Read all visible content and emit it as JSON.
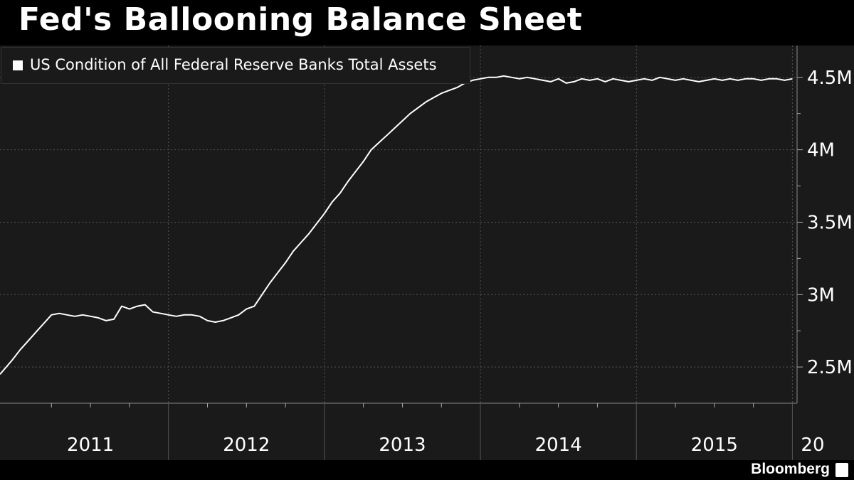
{
  "title": "Fed's Ballooning Balance Sheet",
  "brand": "Bloomberg",
  "colors": {
    "background": "#000000",
    "plot_bg": "#1a1a1a",
    "line": "#ffffff",
    "grid": "#555555",
    "text": "#ffffff"
  },
  "chart_data": {
    "type": "line",
    "title": "Fed's Ballooning Balance Sheet",
    "legend": {
      "placement": "top-left"
    },
    "grid": true,
    "y_axis": {
      "position": "right",
      "range": [
        2.25,
        4.72
      ],
      "ticks": [
        2.5,
        3,
        3.5,
        4,
        4.5
      ],
      "tick_labels": [
        "2.5M",
        "3M",
        "3.5M",
        "4M",
        "4.5M"
      ]
    },
    "x_axis": {
      "range": [
        2010.92,
        2016.03
      ],
      "year_labels": [
        "2011",
        "2012",
        "2013",
        "2014",
        "2015",
        "20"
      ]
    },
    "series": [
      {
        "name": "US Condition of All Federal Reserve Banks Total Assets",
        "x": [
          2010.92,
          2010.96,
          2011.0,
          2011.05,
          2011.1,
          2011.15,
          2011.2,
          2011.25,
          2011.3,
          2011.35,
          2011.4,
          2011.45,
          2011.5,
          2011.55,
          2011.6,
          2011.65,
          2011.7,
          2011.75,
          2011.8,
          2011.85,
          2011.9,
          2011.95,
          2012.0,
          2012.05,
          2012.1,
          2012.15,
          2012.2,
          2012.25,
          2012.3,
          2012.35,
          2012.4,
          2012.45,
          2012.5,
          2012.55,
          2012.6,
          2012.65,
          2012.7,
          2012.75,
          2012.8,
          2012.85,
          2012.9,
          2012.95,
          2013.0,
          2013.05,
          2013.1,
          2013.15,
          2013.2,
          2013.25,
          2013.3,
          2013.35,
          2013.4,
          2013.45,
          2013.5,
          2013.55,
          2013.6,
          2013.65,
          2013.7,
          2013.75,
          2013.8,
          2013.85,
          2013.9,
          2013.95,
          2014.0,
          2014.05,
          2014.1,
          2014.15,
          2014.2,
          2014.25,
          2014.3,
          2014.35,
          2014.4,
          2014.45,
          2014.5,
          2014.55,
          2014.6,
          2014.65,
          2014.7,
          2014.75,
          2014.8,
          2014.85,
          2014.9,
          2014.95,
          2015.0,
          2015.05,
          2015.1,
          2015.15,
          2015.2,
          2015.25,
          2015.3,
          2015.35,
          2015.4,
          2015.45,
          2015.5,
          2015.55,
          2015.6,
          2015.65,
          2015.7,
          2015.75,
          2015.8,
          2015.85,
          2015.9,
          2015.95,
          2016.0
        ],
        "y": [
          2.45,
          2.5,
          2.55,
          2.62,
          2.68,
          2.74,
          2.8,
          2.86,
          2.87,
          2.86,
          2.85,
          2.86,
          2.85,
          2.84,
          2.82,
          2.83,
          2.92,
          2.9,
          2.92,
          2.93,
          2.88,
          2.87,
          2.86,
          2.85,
          2.86,
          2.86,
          2.85,
          2.82,
          2.81,
          2.82,
          2.84,
          2.86,
          2.9,
          2.92,
          3.0,
          3.08,
          3.15,
          3.22,
          3.3,
          3.36,
          3.42,
          3.49,
          3.56,
          3.64,
          3.7,
          3.78,
          3.85,
          3.92,
          4.0,
          4.05,
          4.1,
          4.15,
          4.2,
          4.25,
          4.29,
          4.33,
          4.36,
          4.39,
          4.41,
          4.43,
          4.46,
          4.48,
          4.49,
          4.5,
          4.5,
          4.51,
          4.5,
          4.49,
          4.5,
          4.49,
          4.48,
          4.47,
          4.49,
          4.46,
          4.47,
          4.49,
          4.48,
          4.49,
          4.47,
          4.49,
          4.48,
          4.47,
          4.48,
          4.49,
          4.48,
          4.5,
          4.49,
          4.48,
          4.49,
          4.48,
          4.47,
          4.48,
          4.49,
          4.48,
          4.49,
          4.48,
          4.49,
          4.49,
          4.48,
          4.49,
          4.49,
          4.48,
          4.49
        ]
      }
    ]
  }
}
